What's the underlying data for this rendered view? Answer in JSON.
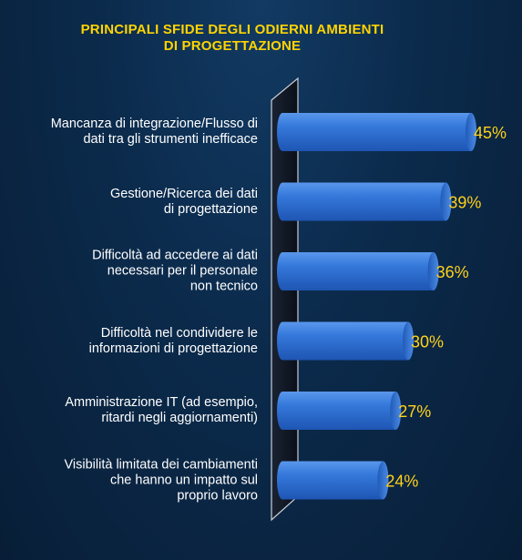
{
  "chart_data": {
    "type": "bar",
    "orientation": "horizontal",
    "title_lines": [
      "PRINCIPALI SFIDE DEGLI ODIERNI AMBIENTI",
      "DI PROGETTAZIONE"
    ],
    "categories": [
      [
        "Mancanza di integrazione/Flusso di",
        "dati tra gli strumenti inefficace"
      ],
      [
        "Gestione/Ricerca dei dati",
        "di progettazione"
      ],
      [
        "Difficoltà ad accedere ai dati",
        "necessari per il personale",
        "non tecnico"
      ],
      [
        "Difficoltà nel condividere le",
        "informazioni di progettazione"
      ],
      [
        "Amministrazione IT (ad esempio,",
        "ritardi negli aggiornamenti)"
      ],
      [
        "Visibilità limitata dei cambiamenti",
        "che hanno un impatto sul",
        "proprio lavoro"
      ]
    ],
    "values": [
      45,
      39,
      36,
      30,
      27,
      24
    ],
    "value_labels": [
      "45%",
      "39%",
      "36%",
      "30%",
      "27%",
      "24%"
    ],
    "colors": {
      "bar": "#2d6fd1",
      "value_text": "#ffd21a",
      "title": "#ffd400"
    }
  }
}
